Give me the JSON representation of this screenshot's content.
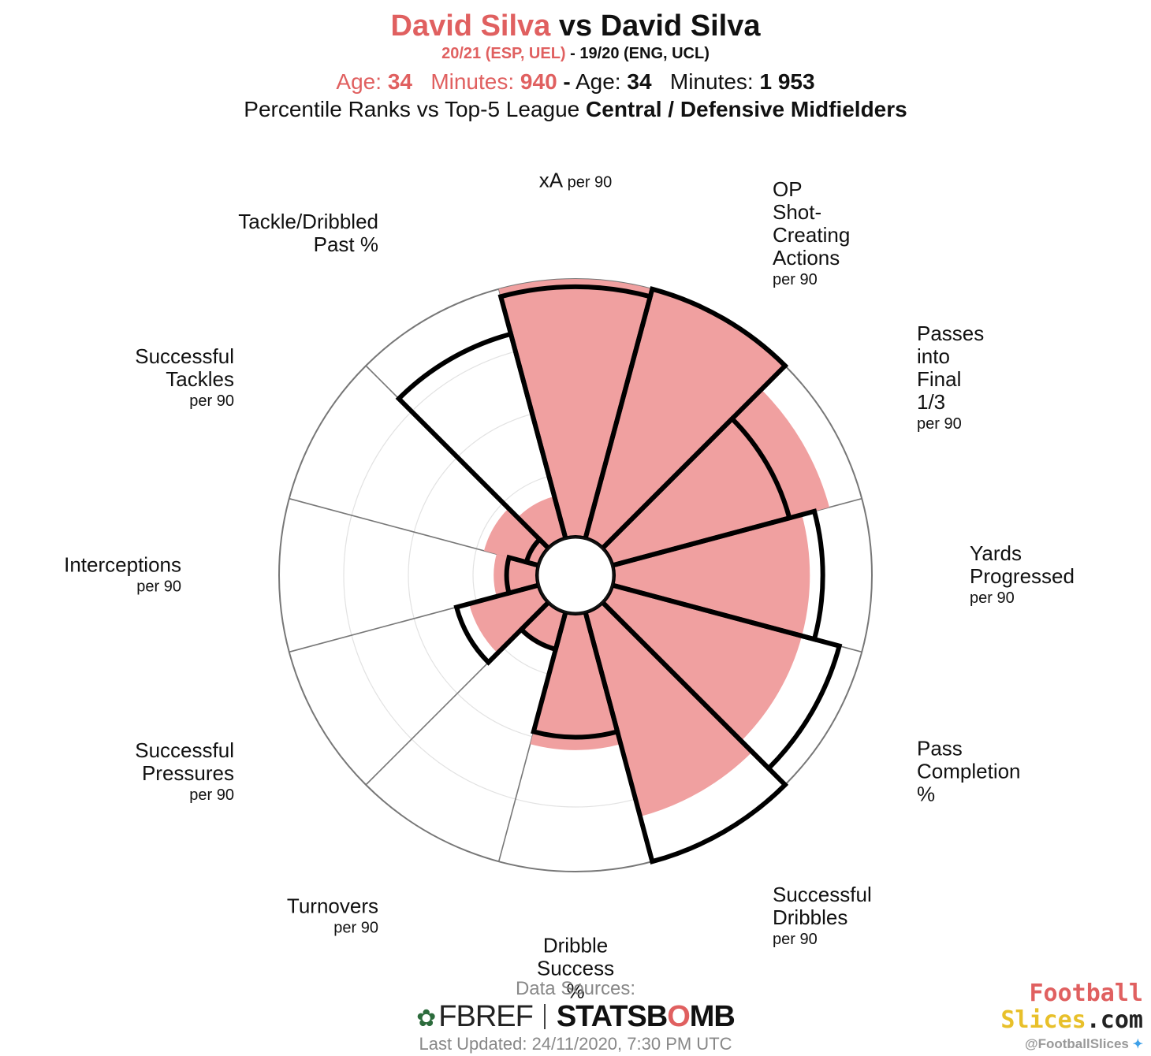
{
  "header": {
    "player_a": "David Silva",
    "vs": "vs",
    "player_b": "David Silva",
    "season_a": "20/21 (ESP, UEL)",
    "season_sep": "-",
    "season_b": "19/20 (ENG, UCL)",
    "age_label": "Age:",
    "minutes_label": "Minutes:",
    "age_a": "34",
    "minutes_a": "940",
    "mid_sep": "-",
    "age_b": "34",
    "minutes_b": "1 953",
    "desc_prefix": "Percentile Ranks vs Top-5 League",
    "desc_bold": "Central / Defensive Midfielders"
  },
  "chart_data": {
    "type": "polar-bar",
    "title": "David Silva vs David Silva",
    "rlim": [
      0,
      100
    ],
    "categories": [
      {
        "name": "xA",
        "unit": "per 90"
      },
      {
        "name": "OP Shot-Creating Actions",
        "unit": "per 90"
      },
      {
        "name": "Passes into Final 1/3",
        "unit": "per 90"
      },
      {
        "name": "Yards Progressed",
        "unit": "per 90"
      },
      {
        "name": "Pass Completion %",
        "unit": ""
      },
      {
        "name": "Successful Dribbles",
        "unit": "per 90"
      },
      {
        "name": "Dribble Success %",
        "unit": ""
      },
      {
        "name": "Turnovers",
        "unit": "per 90"
      },
      {
        "name": "Successful Pressures",
        "unit": "per 90"
      },
      {
        "name": "Interceptions",
        "unit": "per 90"
      },
      {
        "name": "Successful Tackles",
        "unit": "per 90"
      },
      {
        "name": "Tackle/Dribbled Past %",
        "unit": ""
      }
    ],
    "series": [
      {
        "name": "20/21 (ESP, UEL)",
        "style": "filled",
        "color": "#f0a0a0",
        "values": [
          100,
          100,
          87,
          76,
          76,
          82,
          53,
          16,
          28,
          17,
          22,
          17
        ]
      },
      {
        "name": "19/20 (ENG, UCL)",
        "style": "outline",
        "color": "#000000",
        "values": [
          97,
          100,
          71,
          81,
          91,
          100,
          48,
          15,
          33,
          12,
          5,
          82
        ]
      }
    ]
  },
  "footer": {
    "sources_label": "Data Sources:",
    "fbref": "FBREF",
    "statsbomb_a": "STATSB",
    "statsbomb_o": "O",
    "statsbomb_b": "MB",
    "updated": "Last Updated: 24/11/2020, 7:30 PM UTC"
  },
  "brand": {
    "line1": "Football",
    "line2a": "Slices",
    "line2b": ".com",
    "handle": "@FootballSlices"
  }
}
